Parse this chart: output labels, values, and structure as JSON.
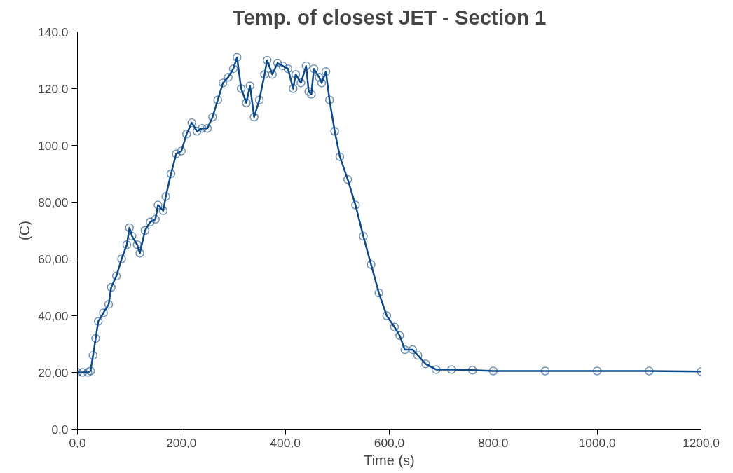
{
  "chart_data": {
    "type": "line",
    "title": "Temp. of closest JET - Section 1",
    "xlabel": "Time (s)",
    "ylabel": "(C)",
    "xlim": [
      0,
      1200
    ],
    "ylim": [
      0,
      140
    ],
    "xticks": [
      {
        "value": 0,
        "label": "0,0"
      },
      {
        "value": 200,
        "label": "200,0"
      },
      {
        "value": 400,
        "label": "400,0"
      },
      {
        "value": 600,
        "label": "600,0"
      },
      {
        "value": 800,
        "label": "800,0"
      },
      {
        "value": 1000,
        "label": "1000,0"
      },
      {
        "value": 1200,
        "label": "1200,0"
      }
    ],
    "yticks": [
      {
        "value": 0,
        "label": "0,0"
      },
      {
        "value": 20,
        "label": "20,00"
      },
      {
        "value": 40,
        "label": "40,00"
      },
      {
        "value": 60,
        "label": "60,00"
      },
      {
        "value": 80,
        "label": "80,00"
      },
      {
        "value": 100,
        "label": "100,0"
      },
      {
        "value": 120,
        "label": "120,0"
      },
      {
        "value": 140,
        "label": "140,0"
      }
    ],
    "marker": "circle",
    "line_style": "solid",
    "grid": false,
    "series": [
      {
        "color": "#0d4a8a",
        "x": [
          0,
          10,
          20,
          25,
          30,
          35,
          40,
          50,
          60,
          65,
          75,
          85,
          95,
          100,
          105,
          115,
          120,
          130,
          140,
          150,
          155,
          165,
          170,
          180,
          190,
          200,
          210,
          220,
          230,
          240,
          250,
          260,
          270,
          280,
          290,
          300,
          307,
          315,
          325,
          332,
          340,
          350,
          360,
          365,
          375,
          385,
          395,
          405,
          415,
          420,
          430,
          440,
          445,
          450,
          455,
          465,
          470,
          478,
          485,
          495,
          505,
          520,
          535,
          550,
          565,
          580,
          595,
          610,
          620,
          630,
          645,
          655,
          670,
          690,
          720,
          760,
          800,
          900,
          1000,
          1100,
          1200
        ],
        "values": [
          20,
          20,
          20,
          20.5,
          26,
          32,
          38,
          41,
          44,
          50,
          54,
          60,
          65,
          71,
          68,
          65,
          62,
          70,
          73,
          74,
          79,
          77,
          82,
          90,
          97,
          98,
          104,
          108,
          105,
          106,
          106,
          110,
          116,
          122,
          124,
          127,
          131,
          120,
          115,
          121,
          110,
          116,
          125,
          130,
          125,
          129,
          128,
          127,
          120,
          125,
          122,
          128,
          119,
          118,
          127,
          124,
          122,
          126,
          116,
          105,
          96,
          88,
          79,
          68,
          58,
          48,
          40,
          36,
          33,
          28,
          28,
          26,
          23,
          21,
          21,
          20.8,
          20.5,
          20.5,
          20.5,
          20.5,
          20.3
        ]
      }
    ]
  }
}
